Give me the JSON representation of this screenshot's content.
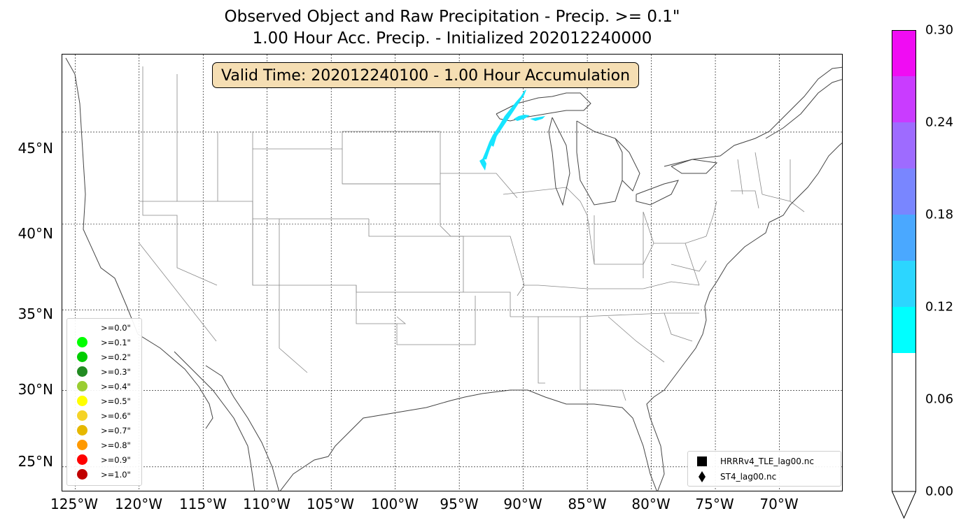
{
  "title": {
    "line1": "Observed Object and Raw Precipitation - Precip. >= 0.1\"",
    "line2": "1.00 Hour Acc. Precip. - Initialized 202012240000"
  },
  "valid_time": "Valid Time: 202012240100 - 1.00 Hour Accumulation",
  "map": {
    "extent": {
      "lon_min": -126,
      "lon_max": -65,
      "lat_min": 23.3,
      "lat_max": 48.5
    },
    "lat_labels": [
      "45°N",
      "40°N",
      "35°N",
      "30°N",
      "25°N"
    ],
    "lon_labels": [
      "125°W",
      "120°W",
      "115°W",
      "110°W",
      "105°W",
      "100°W",
      "95°W",
      "90°W",
      "85°W",
      "80°W",
      "75°W",
      "70°W"
    ]
  },
  "threshold_legend": {
    "items": [
      {
        "label": ">=0.0\"",
        "color": "#ffffff"
      },
      {
        "label": ">=0.1\"",
        "color": "#00ff00"
      },
      {
        "label": ">=0.2\"",
        "color": "#00cd00"
      },
      {
        "label": ">=0.3\"",
        "color": "#228b22"
      },
      {
        "label": ">=0.4\"",
        "color": "#9acd32"
      },
      {
        "label": ">=0.5\"",
        "color": "#ffff00"
      },
      {
        "label": ">=0.6\"",
        "color": "#f5d327"
      },
      {
        "label": ">=0.7\"",
        "color": "#e6b800"
      },
      {
        "label": ">=0.8\"",
        "color": "#ff9900"
      },
      {
        "label": ">=0.9\"",
        "color": "#ff0000"
      },
      {
        "label": ">=1.0\"",
        "color": "#c00000"
      }
    ]
  },
  "model_legend": {
    "items": [
      {
        "label": "HRRRv4_TLE_lag00.nc",
        "marker": "square"
      },
      {
        "label": "ST4_lag00.nc",
        "marker": "diamond"
      }
    ]
  },
  "colorbar": {
    "min": 0.0,
    "max": 0.3,
    "tick_labels": [
      "0.30",
      "0.24",
      "0.18",
      "0.12",
      "0.06",
      "0.00"
    ],
    "bins": [
      {
        "lo": 0.0,
        "hi": 0.09,
        "color": "#ffffff"
      },
      {
        "lo": 0.09,
        "hi": 0.12,
        "color": "#00ffff"
      },
      {
        "lo": 0.12,
        "hi": 0.15,
        "color": "#2cd6ff"
      },
      {
        "lo": 0.15,
        "hi": 0.18,
        "color": "#4aa8ff"
      },
      {
        "lo": 0.18,
        "hi": 0.21,
        "color": "#7986ff"
      },
      {
        "lo": 0.21,
        "hi": 0.24,
        "color": "#9e6bff"
      },
      {
        "lo": 0.24,
        "hi": 0.27,
        "color": "#c93cff"
      },
      {
        "lo": 0.27,
        "hi": 0.3,
        "color": "#f00cf3"
      }
    ],
    "extend": "min"
  },
  "precip_color": "#16e5ff"
}
